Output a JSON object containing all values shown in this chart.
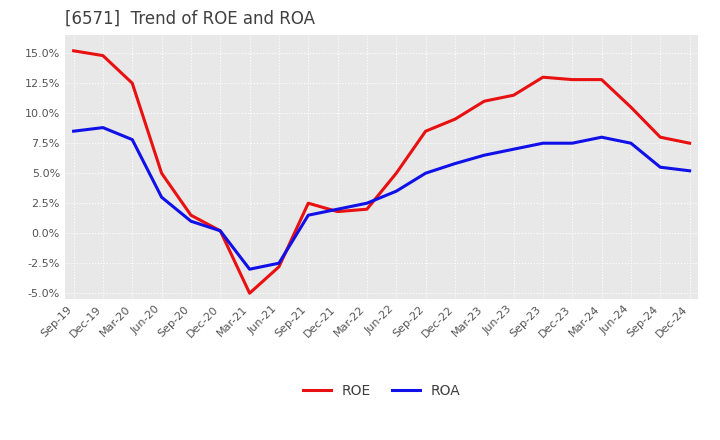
{
  "title": "[6571]  Trend of ROE and ROA",
  "x_labels": [
    "Sep-19",
    "Dec-19",
    "Mar-20",
    "Jun-20",
    "Sep-20",
    "Dec-20",
    "Mar-21",
    "Jun-21",
    "Sep-21",
    "Dec-21",
    "Mar-22",
    "Jun-22",
    "Sep-22",
    "Dec-22",
    "Mar-23",
    "Jun-23",
    "Sep-23",
    "Dec-23",
    "Mar-24",
    "Jun-24",
    "Sep-24",
    "Dec-24"
  ],
  "roe": [
    15.2,
    14.8,
    12.5,
    5.0,
    1.5,
    0.2,
    -5.0,
    -2.8,
    2.5,
    1.8,
    2.0,
    5.0,
    8.5,
    9.5,
    11.0,
    11.5,
    13.0,
    12.8,
    12.8,
    10.5,
    8.0,
    7.5
  ],
  "roa": [
    8.5,
    8.8,
    7.8,
    3.0,
    1.0,
    0.2,
    -3.0,
    -2.5,
    1.5,
    2.0,
    2.5,
    3.5,
    5.0,
    5.8,
    6.5,
    7.0,
    7.5,
    7.5,
    8.0,
    7.5,
    5.5,
    5.2
  ],
  "roe_color": "#e81010",
  "roa_color": "#1010e8",
  "ylim": [
    -5.5,
    16.5
  ],
  "yticks": [
    -5.0,
    -2.5,
    0.0,
    2.5,
    5.0,
    7.5,
    10.0,
    12.5,
    15.0
  ],
  "background_color": "#ffffff",
  "plot_bg_color": "#e8e8e8",
  "grid_color": "#ffffff",
  "title_fontsize": 12,
  "tick_fontsize": 8,
  "legend_fontsize": 10
}
